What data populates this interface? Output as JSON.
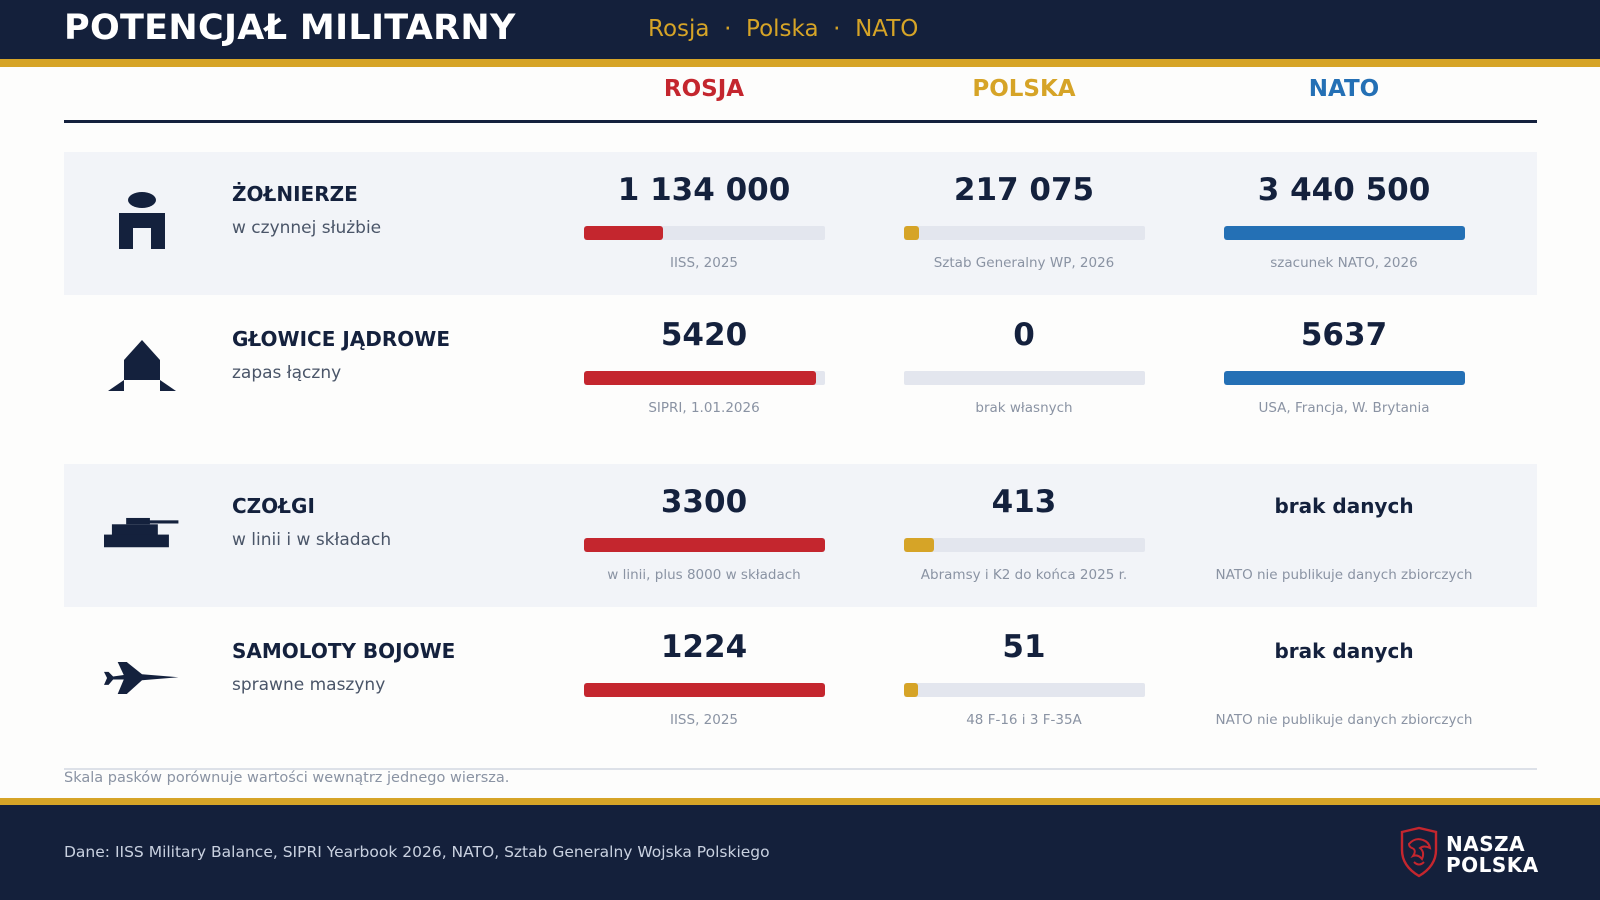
{
  "header": {
    "title": "POTENCJAŁ MILITARNY",
    "subtitle": "Rosja  ·  Polska  ·  NATO"
  },
  "colors": {
    "navy": "#14203b",
    "gold": "#d6a427",
    "rosja": "#c4262e",
    "polska": "#d6a427",
    "nato": "#2470b5",
    "track": "#e3e6ee"
  },
  "chart_data": {
    "type": "table",
    "columns": [
      "ROSJA",
      "POLSKA",
      "NATO"
    ],
    "column_colors": [
      "#c4262e",
      "#d6a427",
      "#2470b5"
    ],
    "rows": [
      {
        "icon": "soldier-icon",
        "label": "ŻOŁNIERZE",
        "sublabel": "w czynnej służbie",
        "cells": [
          {
            "display": "1 134 000",
            "value": 1134000,
            "source": "IISS, 2025"
          },
          {
            "display": "217 075",
            "value": 217075,
            "source": "Sztab Generalny WP, 2026"
          },
          {
            "display": "3 440 500",
            "value": 3440500,
            "source": "szacunek NATO, 2026"
          }
        ]
      },
      {
        "icon": "nuclear-warhead-icon",
        "label": "GŁOWICE JĄDROWE",
        "sublabel": "zapas łączny",
        "cells": [
          {
            "display": "5420",
            "value": 5420,
            "source": "SIPRI, 1.01.2026"
          },
          {
            "display": "0",
            "value": 0,
            "source": "brak własnych"
          },
          {
            "display": "5637",
            "value": 5637,
            "source": "USA, Francja, W. Brytania"
          }
        ]
      },
      {
        "icon": "tank-icon",
        "label": "CZOŁGI",
        "sublabel": "w linii i w składach",
        "cells": [
          {
            "display": "3300",
            "value": 3300,
            "source": "w linii, plus 8000 w składach"
          },
          {
            "display": "413",
            "value": 413,
            "source": "Abramsy i K2 do końca 2025 r."
          },
          {
            "display": "brak danych",
            "value": null,
            "source": "NATO nie publikuje danych zbiorczych"
          }
        ]
      },
      {
        "icon": "fighter-jet-icon",
        "label": "SAMOLOTY BOJOWE",
        "sublabel": "sprawne maszyny",
        "cells": [
          {
            "display": "1224",
            "value": 1224,
            "source": "IISS, 2025"
          },
          {
            "display": "51",
            "value": 51,
            "source": "48 F-16 i 3 F-35A"
          },
          {
            "display": "brak danych",
            "value": null,
            "source": "NATO nie publikuje danych zbiorczych"
          }
        ]
      }
    ]
  },
  "note": "Skala pasków porównuje wartości wewnątrz jednego wiersza.",
  "footer": {
    "sources": "Dane: IISS Military Balance, SIPRI Yearbook 2026, NATO, Sztab Generalny Wojska Polskiego",
    "logo_line1": "NASZA",
    "logo_line2": "POLSKA"
  }
}
